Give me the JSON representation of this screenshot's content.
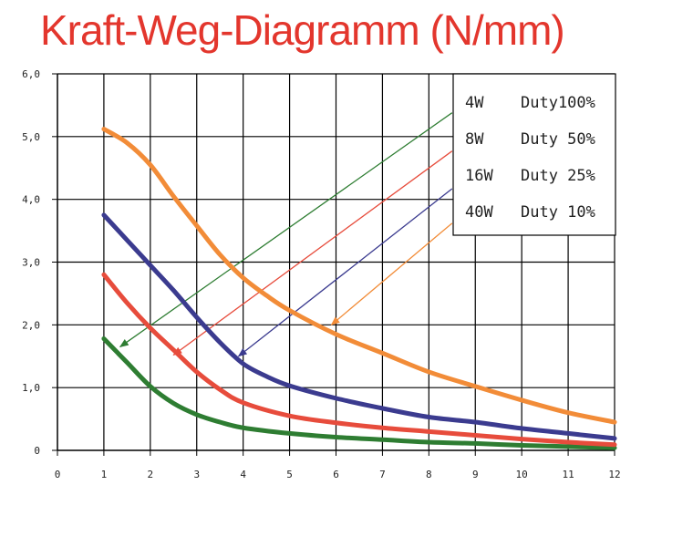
{
  "chart_data": {
    "type": "line",
    "title": "Kraft-Weg-Diagramm (N/mm)",
    "xlabel": "",
    "ylabel": "",
    "xlim": [
      0,
      12
    ],
    "ylim": [
      0,
      6
    ],
    "grid": true,
    "legend_position": "top-right",
    "x_ticks": [
      "0",
      "1",
      "2",
      "3",
      "4",
      "5",
      "6",
      "7",
      "8",
      "9",
      "10",
      "11",
      "12"
    ],
    "y_ticks": [
      "0",
      "1,0",
      "2,0",
      "3,0",
      "4,0",
      "5,0",
      "6,0"
    ],
    "series": [
      {
        "name": "4W",
        "duty": "Duty100%",
        "color": "#2e7d32",
        "points": [
          [
            1,
            1.78
          ],
          [
            1.5,
            1.4
          ],
          [
            2,
            1.02
          ],
          [
            2.5,
            0.75
          ],
          [
            3,
            0.57
          ],
          [
            3.5,
            0.45
          ],
          [
            4,
            0.36
          ],
          [
            5,
            0.27
          ],
          [
            6,
            0.21
          ],
          [
            7,
            0.17
          ],
          [
            8,
            0.13
          ],
          [
            9,
            0.11
          ],
          [
            10,
            0.08
          ],
          [
            11,
            0.06
          ],
          [
            12,
            0.04
          ]
        ],
        "arrow": {
          "from": [
            8.5,
            5.38
          ],
          "to": [
            1.35,
            1.65
          ]
        }
      },
      {
        "name": "8W",
        "duty": "Duty 50%",
        "color": "#e74c3c",
        "points": [
          [
            1,
            2.8
          ],
          [
            1.5,
            2.35
          ],
          [
            2,
            1.95
          ],
          [
            2.5,
            1.6
          ],
          [
            3,
            1.25
          ],
          [
            3.5,
            0.97
          ],
          [
            4,
            0.76
          ],
          [
            5,
            0.55
          ],
          [
            6,
            0.44
          ],
          [
            7,
            0.36
          ],
          [
            8,
            0.3
          ],
          [
            9,
            0.24
          ],
          [
            10,
            0.18
          ],
          [
            11,
            0.13
          ],
          [
            12,
            0.09
          ]
        ],
        "arrow": {
          "from": [
            8.5,
            4.77
          ],
          "to": [
            2.5,
            1.52
          ]
        }
      },
      {
        "name": "16W",
        "duty": "Duty 25%",
        "color": "#3b3b8f",
        "points": [
          [
            1,
            3.75
          ],
          [
            1.5,
            3.35
          ],
          [
            2,
            2.95
          ],
          [
            2.5,
            2.55
          ],
          [
            3,
            2.12
          ],
          [
            3.5,
            1.72
          ],
          [
            4,
            1.38
          ],
          [
            4.5,
            1.18
          ],
          [
            5,
            1.03
          ],
          [
            6,
            0.83
          ],
          [
            7,
            0.67
          ],
          [
            8,
            0.53
          ],
          [
            9,
            0.45
          ],
          [
            10,
            0.35
          ],
          [
            11,
            0.27
          ],
          [
            12,
            0.19
          ]
        ],
        "arrow": {
          "from": [
            8.5,
            4.17
          ],
          "to": [
            3.9,
            1.5
          ]
        }
      },
      {
        "name": "40W",
        "duty": "Duty 10%",
        "color": "#f28c38",
        "points": [
          [
            1,
            5.12
          ],
          [
            1.5,
            4.9
          ],
          [
            2,
            4.55
          ],
          [
            2.5,
            4.05
          ],
          [
            3,
            3.58
          ],
          [
            3.5,
            3.12
          ],
          [
            4,
            2.75
          ],
          [
            4.5,
            2.47
          ],
          [
            5,
            2.23
          ],
          [
            6,
            1.85
          ],
          [
            7,
            1.55
          ],
          [
            8,
            1.25
          ],
          [
            9,
            1.02
          ],
          [
            10,
            0.8
          ],
          [
            11,
            0.6
          ],
          [
            12,
            0.45
          ]
        ],
        "arrow": {
          "from": [
            8.5,
            3.62
          ],
          "to": [
            5.9,
            2.0
          ]
        }
      }
    ]
  }
}
